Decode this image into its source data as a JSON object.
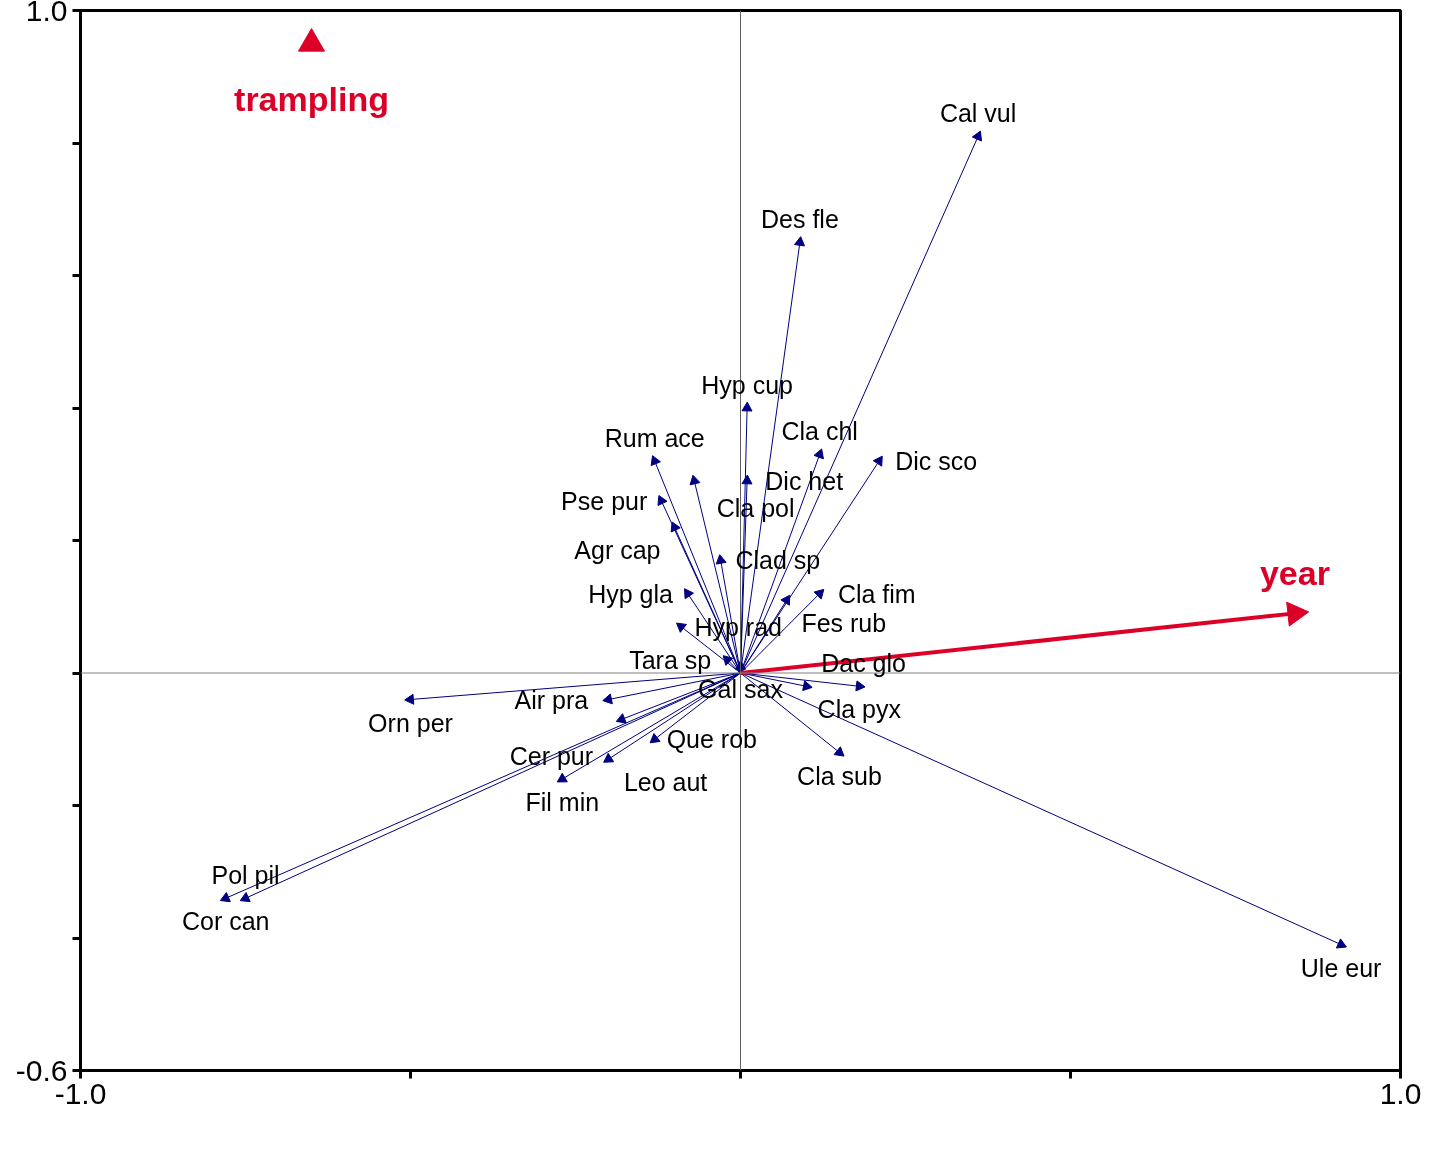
{
  "chart_data": {
    "type": "scatter",
    "xlim": [
      -1.0,
      1.0
    ],
    "ylim": [
      -0.6,
      1.0
    ],
    "xticks": [
      {
        "value": -1.0,
        "label": "-1.0"
      },
      {
        "value": -0.5,
        "label": null
      },
      {
        "value": 0,
        "label": null
      },
      {
        "value": 0.5,
        "label": null
      },
      {
        "value": 1.0,
        "label": "1.0"
      }
    ],
    "yticks": [
      {
        "value": -0.6,
        "label": "-0.6"
      },
      {
        "value": -0.4,
        "label": null
      },
      {
        "value": -0.2,
        "label": null
      },
      {
        "value": 0,
        "label": null
      },
      {
        "value": 0.2,
        "label": null
      },
      {
        "value": 0.4,
        "label": null
      },
      {
        "value": 0.6,
        "label": null
      },
      {
        "value": 0.8,
        "label": null
      },
      {
        "value": 1.0,
        "label": "1.0"
      }
    ],
    "grid": false,
    "ref_lines": [
      {
        "axis": "x",
        "value": 0,
        "color": "#606060"
      },
      {
        "axis": "y",
        "value": 0,
        "color": "#808080"
      }
    ],
    "series": [
      {
        "color": "#000080",
        "marker": "triangle",
        "line_style": "solid",
        "x": [
          0.36,
          0.09,
          0.01,
          0.12,
          0.21,
          0.01,
          -0.13,
          -0.12,
          -0.07,
          -0.1,
          -0.03,
          -0.08,
          -0.09,
          -0.02,
          0.0,
          0.07,
          0.12,
          0.18,
          0.1,
          0.15,
          0.91,
          -0.5,
          -0.2,
          -0.18,
          -0.13,
          -0.2,
          -0.27,
          -0.78,
          -0.75
        ],
        "values": [
          0.81,
          0.65,
          0.4,
          0.33,
          0.32,
          0.29,
          0.32,
          0.26,
          0.29,
          0.22,
          0.17,
          0.12,
          0.07,
          0.02,
          0.01,
          0.11,
          0.12,
          -0.02,
          -0.02,
          -0.12,
          -0.41,
          -0.04,
          -0.04,
          -0.07,
          -0.1,
          -0.13,
          -0.16,
          -0.34,
          -0.34
        ]
      },
      {
        "name": "year",
        "color": "#dc0028",
        "marker": "triangle",
        "line_style": "solid",
        "x": [
          0.84
        ],
        "values": [
          0.09
        ]
      },
      {
        "name": "trampling",
        "color": "#dc0028",
        "marker": "triangle",
        "x": [
          -0.65
        ],
        "values": [
          0.95
        ]
      }
    ],
    "annotations": [
      {
        "text": "Cal vul",
        "x": 0.36,
        "y": 0.81
      },
      {
        "text": "Des fle",
        "x": 0.09,
        "y": 0.65
      },
      {
        "text": "Hyp cup",
        "x": 0.01,
        "y": 0.4
      },
      {
        "text": "Cla chl",
        "x": 0.12,
        "y": 0.33
      },
      {
        "text": "Dic sco",
        "x": 0.21,
        "y": 0.32
      },
      {
        "text": "Dic het",
        "x": 0.01,
        "y": 0.29
      },
      {
        "text": "Rum ace",
        "x": -0.13,
        "y": 0.32
      },
      {
        "text": "Pse pur",
        "x": -0.12,
        "y": 0.26
      },
      {
        "text": "Cla pol",
        "x": -0.07,
        "y": 0.29
      },
      {
        "text": "Agr cap",
        "x": -0.1,
        "y": 0.22
      },
      {
        "text": "Clad sp",
        "x": -0.03,
        "y": 0.17
      },
      {
        "text": "Hyp gla",
        "x": -0.08,
        "y": 0.12
      },
      {
        "text": "Hyp rad",
        "x": -0.09,
        "y": 0.07
      },
      {
        "text": "Tara sp",
        "x": -0.02,
        "y": 0.02
      },
      {
        "text": "Gal sax",
        "x": 0.0,
        "y": 0.01
      },
      {
        "text": "Fes rub",
        "x": 0.07,
        "y": 0.11
      },
      {
        "text": "Cla fim",
        "x": 0.12,
        "y": 0.12
      },
      {
        "text": "Cla pyx",
        "x": 0.18,
        "y": -0.02
      },
      {
        "text": "Dac glo",
        "x": 0.1,
        "y": -0.02
      },
      {
        "text": "Cla sub",
        "x": 0.15,
        "y": -0.12
      },
      {
        "text": "Ule eur",
        "x": 0.91,
        "y": -0.41
      },
      {
        "text": "Orn per",
        "x": -0.5,
        "y": -0.04
      },
      {
        "text": "Air pra",
        "x": -0.2,
        "y": -0.04
      },
      {
        "text": "Cer pur",
        "x": -0.18,
        "y": -0.07
      },
      {
        "text": "Que rob",
        "x": -0.13,
        "y": -0.1
      },
      {
        "text": "Leo aut",
        "x": -0.2,
        "y": -0.13
      },
      {
        "text": "Fil min",
        "x": -0.27,
        "y": -0.16
      },
      {
        "text": "Cor can",
        "x": -0.78,
        "y": -0.34
      },
      {
        "text": "Pol pil",
        "x": -0.75,
        "y": -0.34
      }
    ]
  }
}
